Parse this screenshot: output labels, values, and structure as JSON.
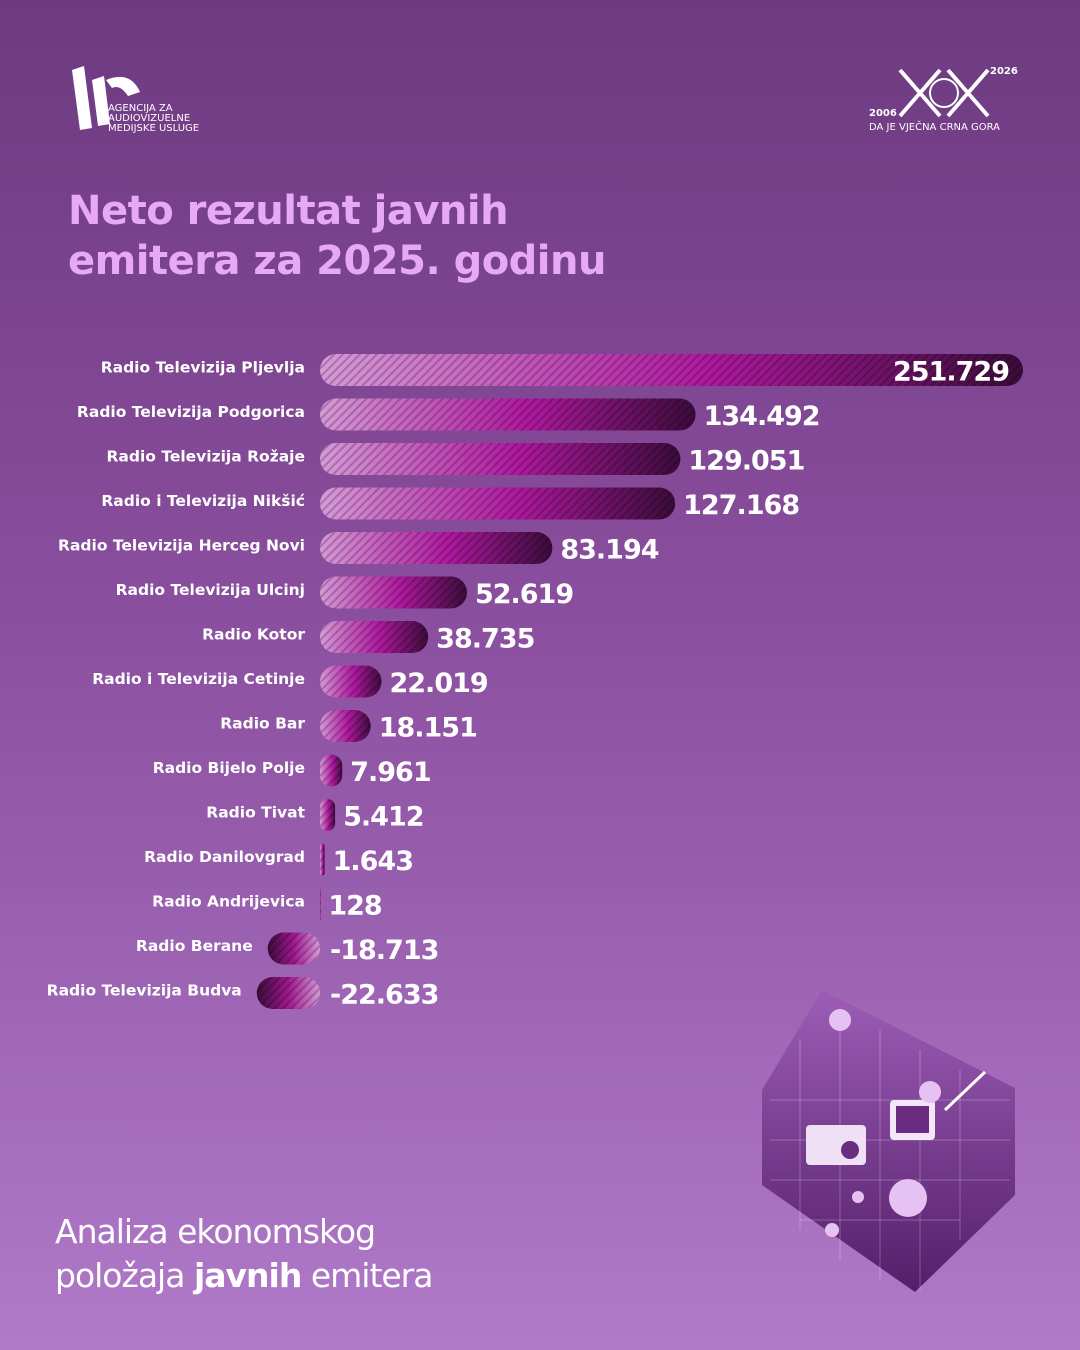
{
  "header": {
    "agency": [
      "AGENCIJA ZA",
      "AUDIOVIZUELNE",
      "MEDIJSKE USLUGE"
    ],
    "anniversary": {
      "mark": "XX",
      "start": "2006",
      "end": "2026",
      "motto": "DA JE VJEČNA CRNA GORA"
    }
  },
  "chart_data": {
    "type": "bar",
    "orientation": "horizontal",
    "title": [
      "Neto rezultat javnih",
      "emitera za 2025. godinu"
    ],
    "categories": [
      "Radio Televizija Pljevlja",
      "Radio Televizija Podgorica",
      "Radio Televizija Rožaje",
      "Radio i Televizija Nikšić",
      "Radio Televizija Herceg Novi",
      "Radio Televizija Ulcinj",
      "Radio Kotor",
      "Radio i Televizija Cetinje",
      "Radio Bar",
      "Radio Bijelo Polje",
      "Radio Tivat",
      "Radio Danilovgrad",
      "Radio Andrijevica",
      "Radio Berane",
      "Radio Televizija Budva"
    ],
    "values": [
      251729,
      134492,
      129051,
      127168,
      83194,
      52619,
      38735,
      22019,
      18151,
      7961,
      5412,
      1643,
      128,
      -18713,
      -22633
    ],
    "value_labels": [
      "251.729",
      "134.492",
      "129.051",
      "127.168",
      "83.194",
      "52.619",
      "38.735",
      "22.019",
      "18.151",
      "7.961",
      "5.412",
      "1.643",
      "128",
      "-18.713",
      "-22.633"
    ]
  },
  "footer": {
    "line1": "Analiza ekonomskog",
    "line2": [
      "položaja",
      "javnih",
      "emitera"
    ]
  }
}
